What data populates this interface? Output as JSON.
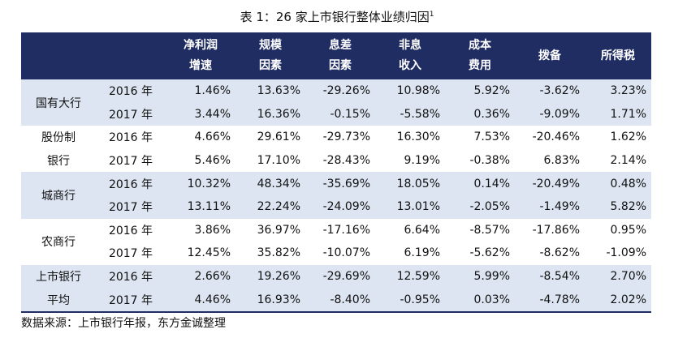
{
  "title": "表 1：26 家上市银行整体业绩归因",
  "title_footnote": "1",
  "columns": [
    {
      "line1": "净利润",
      "line2": "增速"
    },
    {
      "line1": "规模",
      "line2": "因素"
    },
    {
      "line1": "息差",
      "line2": "因素"
    },
    {
      "line1": "非息",
      "line2": "收入"
    },
    {
      "line1": "成本",
      "line2": "费用"
    },
    {
      "line1": "拨备",
      "line2": ""
    },
    {
      "line1": "所得税",
      "line2": ""
    }
  ],
  "groups": [
    {
      "label_lines": [
        "国有大行"
      ],
      "rows": [
        {
          "year": "2016 年",
          "values": [
            "1.46%",
            "13.63%",
            "-29.26%",
            "10.98%",
            "5.92%",
            "-3.62%",
            "3.23%"
          ]
        },
        {
          "year": "2017 年",
          "values": [
            "3.44%",
            "16.36%",
            "-0.15%",
            "-5.58%",
            "0.36%",
            "-9.09%",
            "1.71%"
          ]
        }
      ]
    },
    {
      "label_lines": [
        "股份制",
        "银行"
      ],
      "rows": [
        {
          "year": "2016 年",
          "values": [
            "4.66%",
            "29.61%",
            "-29.73%",
            "16.30%",
            "7.53%",
            "-20.46%",
            "1.62%"
          ]
        },
        {
          "year": "2017 年",
          "values": [
            "5.46%",
            "17.10%",
            "-28.43%",
            "9.19%",
            "-0.38%",
            "6.83%",
            "2.14%"
          ]
        }
      ]
    },
    {
      "label_lines": [
        "城商行"
      ],
      "rows": [
        {
          "year": "2016 年",
          "values": [
            "10.32%",
            "48.34%",
            "-35.69%",
            "18.05%",
            "0.14%",
            "-20.49%",
            "0.48%"
          ]
        },
        {
          "year": "2017 年",
          "values": [
            "13.11%",
            "22.24%",
            "-24.09%",
            "13.01%",
            "-2.05%",
            "-1.49%",
            "5.82%"
          ]
        }
      ]
    },
    {
      "label_lines": [
        "农商行"
      ],
      "rows": [
        {
          "year": "2016 年",
          "values": [
            "3.86%",
            "36.97%",
            "-17.16%",
            "6.64%",
            "-8.57%",
            "-17.86%",
            "0.95%"
          ]
        },
        {
          "year": "2017 年",
          "values": [
            "12.45%",
            "35.82%",
            "-10.07%",
            "6.19%",
            "-5.62%",
            "-8.62%",
            "-1.09%"
          ]
        }
      ]
    },
    {
      "label_lines": [
        "上市银行",
        "平均"
      ],
      "rows": [
        {
          "year": "2016 年",
          "values": [
            "2.66%",
            "19.26%",
            "-29.69%",
            "12.59%",
            "5.99%",
            "-8.54%",
            "2.70%"
          ]
        },
        {
          "year": "2017 年",
          "values": [
            "4.46%",
            "16.93%",
            "-8.40%",
            "-0.95%",
            "0.03%",
            "-4.78%",
            "2.02%"
          ]
        }
      ]
    }
  ],
  "source": "数据来源：上市银行年报，东方金诚整理",
  "colors": {
    "header_bg": "#1f2d63",
    "band_bg": "#dce5f1",
    "text": "#111111"
  }
}
